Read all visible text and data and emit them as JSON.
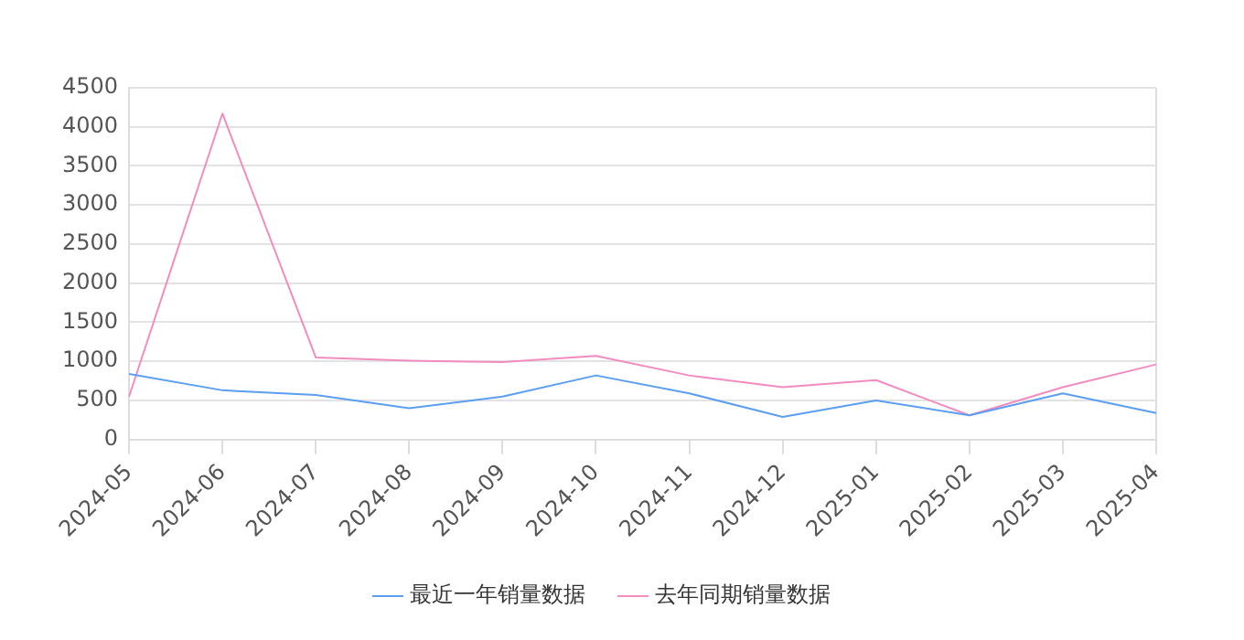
{
  "chart_data": {
    "type": "line",
    "categories": [
      "2024-05",
      "2024-06",
      "2024-07",
      "2024-08",
      "2024-09",
      "2024-10",
      "2024-11",
      "2024-12",
      "2025-01",
      "2025-02",
      "2025-03",
      "2025-04"
    ],
    "series": [
      {
        "name": "最近一年销量数据",
        "color": "#5b9ef2",
        "values": [
          840,
          630,
          570,
          400,
          550,
          820,
          590,
          290,
          500,
          310,
          590,
          340
        ]
      },
      {
        "name": "去年同期销量数据",
        "color": "#f28cc0",
        "values": [
          550,
          4170,
          1050,
          1010,
          990,
          1070,
          820,
          670,
          760,
          310,
          670,
          960
        ]
      }
    ],
    "ylim": [
      0,
      4500
    ],
    "yticks": [
      0,
      500,
      1000,
      1500,
      2000,
      2500,
      3000,
      3500,
      4000,
      4500
    ],
    "grid": "y",
    "legend": "bottom",
    "marker": "none",
    "line_style": "solid"
  }
}
